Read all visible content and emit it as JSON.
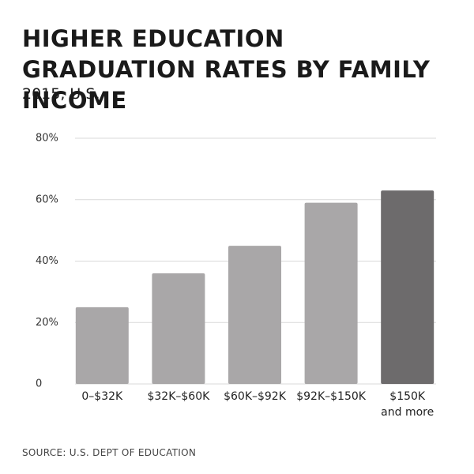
{
  "chart_data": {
    "type": "bar",
    "title": "HIGHER EDUCATION GRADUATION RATES BY FAMILY INCOME",
    "subtitle": "2015, U.S.",
    "source": "SOURCE: U.S. DEPT OF EDUCATION",
    "categories": [
      "0–$32K",
      "$32K–$60K",
      "$60K–$92K",
      "$92K–$150K",
      "$150K\nand more"
    ],
    "values": [
      25,
      36,
      45,
      59,
      63
    ],
    "colors": [
      "#a9a7a8",
      "#a9a7a8",
      "#a9a7a8",
      "#a9a7a8",
      "#6d6b6c"
    ],
    "ylim": [
      0,
      80
    ],
    "yticks": [
      0,
      {
        "value": 20,
        "label": "20%"
      },
      {
        "value": 40,
        "label": "40%"
      },
      {
        "value": 60,
        "label": "60%"
      },
      {
        "value": 80,
        "label": "80%"
      }
    ],
    "grid": true
  }
}
